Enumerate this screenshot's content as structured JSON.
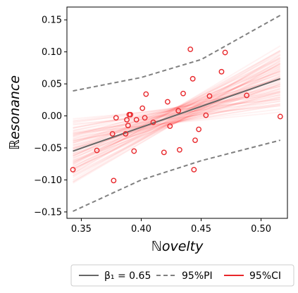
{
  "chart_data": {
    "type": "scatter",
    "xlabel": "ℕovelty",
    "ylabel": "ℝesonance",
    "xlim": [
      0.338,
      0.522
    ],
    "ylim": [
      -0.16,
      0.17
    ],
    "xticks": [
      0.35,
      0.4,
      0.45,
      0.5
    ],
    "yticks": [
      -0.15,
      -0.1,
      -0.05,
      0.0,
      0.05,
      0.1,
      0.15
    ],
    "xtick_labels": [
      "0.35",
      "0.40",
      "0.45",
      "0.50"
    ],
    "ytick_labels": [
      "−0.15",
      "−0.10",
      "−0.05",
      "0.00",
      "0.05",
      "0.10",
      "0.15"
    ],
    "grid": false,
    "points": {
      "color": "#e8262a",
      "x": [
        0.343,
        0.363,
        0.376,
        0.377,
        0.379,
        0.387,
        0.388,
        0.389,
        0.39,
        0.391,
        0.394,
        0.396,
        0.401,
        0.403,
        0.404,
        0.41,
        0.419,
        0.422,
        0.424,
        0.431,
        0.432,
        0.435,
        0.441,
        0.443,
        0.444,
        0.445,
        0.448,
        0.454,
        0.457,
        0.467,
        0.47,
        0.488,
        0.516
      ],
      "y": [
        -0.084,
        -0.054,
        -0.028,
        -0.101,
        -0.003,
        -0.028,
        -0.006,
        -0.015,
        0.002,
        0.002,
        -0.055,
        -0.006,
        0.012,
        -0.003,
        0.034,
        -0.01,
        -0.057,
        0.022,
        -0.016,
        0.008,
        -0.053,
        0.035,
        0.104,
        0.058,
        -0.084,
        -0.038,
        -0.021,
        0.001,
        0.031,
        0.069,
        0.099,
        0.032,
        -0.001
      ]
    },
    "fit_line": {
      "color": "#666666",
      "x": [
        0.343,
        0.516
      ],
      "y": [
        -0.055,
        0.058
      ]
    },
    "prediction_interval": {
      "color": "#808080",
      "upper": {
        "x": [
          0.343,
          0.4,
          0.45,
          0.516
        ],
        "y": [
          0.039,
          0.06,
          0.088,
          0.157
        ]
      },
      "lower": {
        "x": [
          0.343,
          0.4,
          0.45,
          0.516
        ],
        "y": [
          -0.149,
          -0.1,
          -0.07,
          -0.038
        ]
      }
    },
    "confidence_band": {
      "color": "#ff0000"
    },
    "legend": {
      "position": "bottom",
      "entries": [
        {
          "label": "β₁ = 0.65",
          "style": "solid",
          "color": "#666666"
        },
        {
          "label": "95%PI",
          "style": "dashed",
          "color": "#808080"
        },
        {
          "label": "95%CI",
          "style": "solid",
          "color": "#e8262a"
        }
      ]
    }
  }
}
